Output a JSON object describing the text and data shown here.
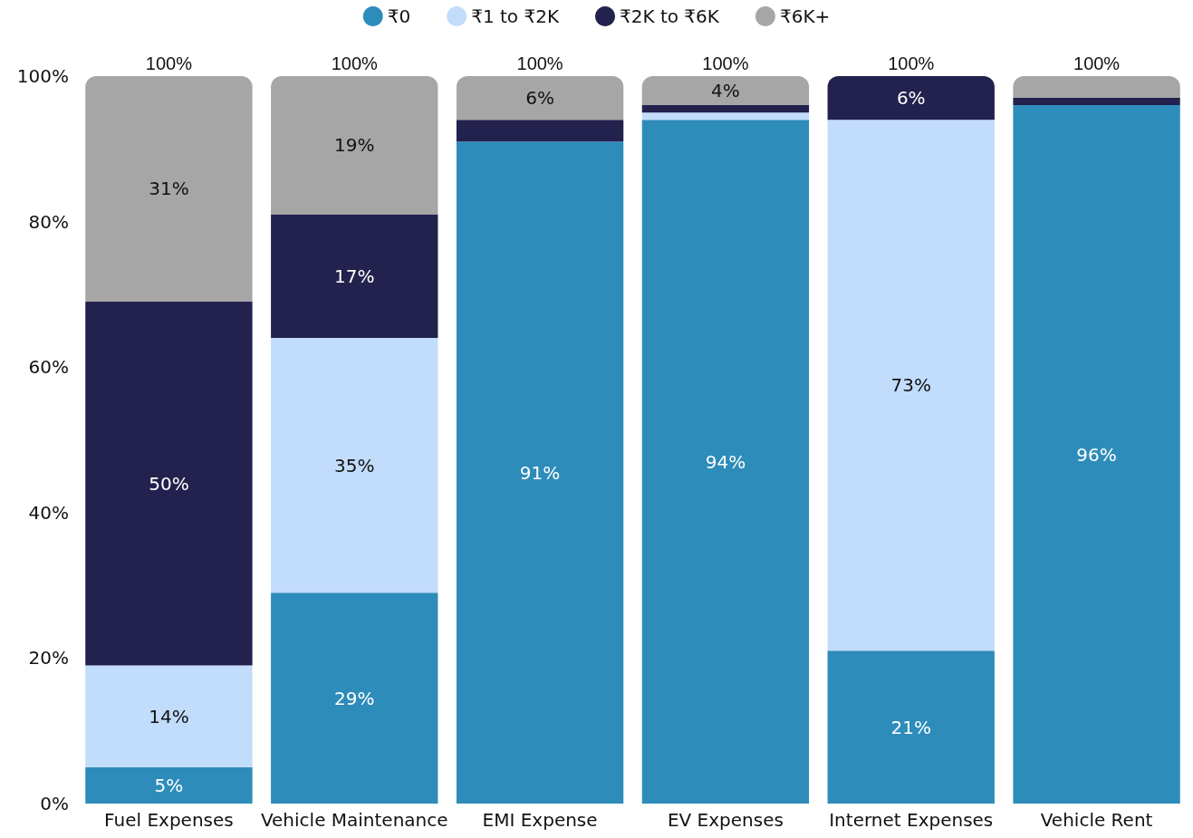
{
  "chart_data": {
    "type": "bar",
    "stacked": true,
    "categories": [
      "Fuel Expenses",
      "Vehicle Maintenance",
      "EMI Expense",
      "EV Expenses",
      "Internet Expenses",
      "Vehicle Rent"
    ],
    "series": [
      {
        "name": "₹0",
        "color": "#2e8cba",
        "values": [
          5,
          29,
          91,
          94,
          21,
          96
        ],
        "value_labels": [
          "5%",
          "29%",
          "91%",
          "94%",
          "21%",
          "96%"
        ]
      },
      {
        "name": "₹1 to ₹2K",
        "color": "#c2dcfc",
        "values": [
          14,
          35,
          0,
          1,
          73,
          0
        ],
        "value_labels": [
          "14%",
          "35%",
          null,
          null,
          "73%",
          null
        ]
      },
      {
        "name": "₹2K to ₹6K",
        "color": "#23214d",
        "values": [
          50,
          17,
          3,
          1,
          6,
          1
        ],
        "value_labels": [
          "50%",
          "17%",
          null,
          null,
          "6%",
          null
        ]
      },
      {
        "name": "₹6K+",
        "color": "#a6a6a6",
        "values": [
          31,
          19,
          6,
          4,
          0,
          3
        ],
        "value_labels": [
          "31%",
          "19%",
          "6%",
          "4%",
          null,
          null
        ]
      }
    ],
    "totals": [
      "100%",
      "100%",
      "100%",
      "100%",
      "100%",
      "100%"
    ],
    "ylim": [
      0,
      100
    ],
    "yticks": [
      {
        "value": 0,
        "label": "0%"
      },
      {
        "value": 20,
        "label": "20%"
      },
      {
        "value": 40,
        "label": "40%"
      },
      {
        "value": 60,
        "label": "60%"
      },
      {
        "value": 80,
        "label": "80%"
      },
      {
        "value": 100,
        "label": "100%"
      }
    ],
    "grid": false,
    "legend": "top"
  }
}
